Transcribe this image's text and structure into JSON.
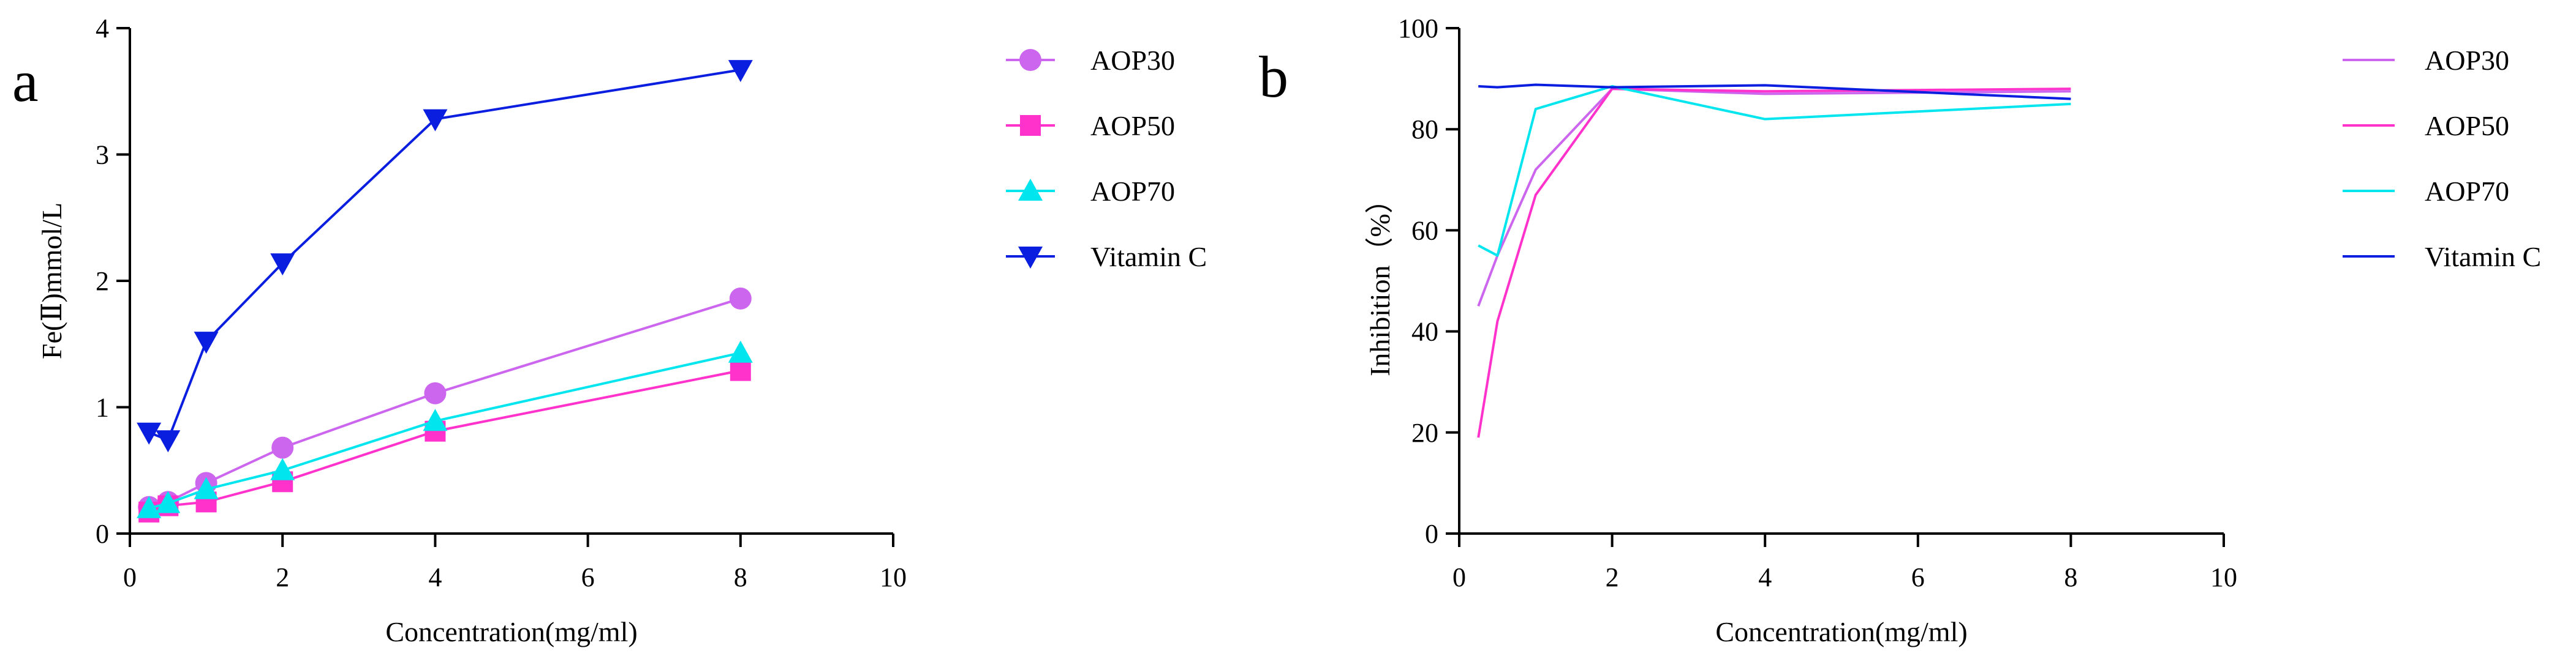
{
  "chart_data": [
    {
      "type": "line",
      "panel_label": "a",
      "xlabel": "Concentration(mg/ml)",
      "ylabel": "Fe(Ⅱ)mmol/L",
      "xlim": [
        0,
        10
      ],
      "ylim": [
        0,
        4
      ],
      "xticks": [
        "0",
        "2",
        "4",
        "6",
        "8",
        "10"
      ],
      "yticks": [
        "0",
        "1",
        "2",
        "3",
        "4"
      ],
      "legend_position": "right",
      "x": [
        0.25,
        0.5,
        1,
        2,
        4,
        8
      ],
      "series": [
        {
          "name": "AOP30",
          "color": "#cc66ee",
          "marker": "circle",
          "values": [
            0.21,
            0.25,
            0.4,
            0.68,
            1.11,
            1.86
          ]
        },
        {
          "name": "AOP50",
          "color": "#ff33cc",
          "marker": "square",
          "values": [
            0.17,
            0.22,
            0.25,
            0.41,
            0.81,
            1.29
          ]
        },
        {
          "name": "AOP70",
          "color": "#00e5ee",
          "marker": "triangle-up",
          "values": [
            0.2,
            0.24,
            0.35,
            0.5,
            0.89,
            1.43
          ]
        },
        {
          "name": "Vitamin C",
          "color": "#0a1ee0",
          "marker": "triangle-down",
          "values": [
            0.8,
            0.74,
            1.52,
            2.14,
            3.28,
            3.67
          ]
        }
      ]
    },
    {
      "type": "line",
      "panel_label": "b",
      "xlabel": "Concentration(mg/ml)",
      "ylabel": "Inhibition（%）",
      "xlim": [
        0,
        10
      ],
      "ylim": [
        0,
        100
      ],
      "xticks": [
        "0",
        "2",
        "4",
        "6",
        "8",
        "10"
      ],
      "yticks": [
        "0",
        "20",
        "40",
        "60",
        "80",
        "100"
      ],
      "legend_position": "right",
      "x": [
        0.25,
        0.5,
        1,
        2,
        4,
        8
      ],
      "series": [
        {
          "name": "AOP30",
          "color": "#cc66ee",
          "values": [
            45,
            55,
            72,
            88,
            87,
            87.5
          ]
        },
        {
          "name": "AOP50",
          "color": "#ff33cc",
          "values": [
            19,
            42,
            67,
            88,
            87.5,
            88
          ]
        },
        {
          "name": "AOP70",
          "color": "#00e5ee",
          "values": [
            57,
            55,
            84,
            88.5,
            82,
            85
          ]
        },
        {
          "name": "Vitamin C",
          "color": "#0a1ee0",
          "values": [
            88.5,
            88.3,
            88.8,
            88.3,
            88.7,
            86
          ]
        }
      ]
    }
  ]
}
